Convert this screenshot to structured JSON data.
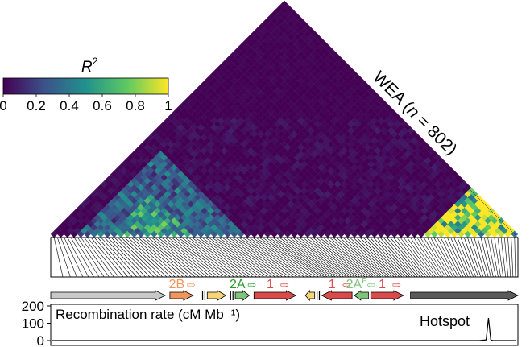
{
  "chart_data": [
    {
      "type": "heatmap",
      "title": "",
      "population_label": {
        "prefix": "WEA (",
        "italic": "n",
        "suffix": " = 802)"
      },
      "colorbar": {
        "label_base": "R",
        "label_sup": "2",
        "range": [
          0,
          1
        ],
        "ticks": [
          "0",
          "0.2",
          "0.4",
          "0.6",
          "0.8",
          "1"
        ],
        "colors": [
          "#440154",
          "#3b528b",
          "#21918c",
          "#5ec962",
          "#fde725"
        ]
      },
      "blocks": [
        {
          "name": "background",
          "start": 0.0,
          "end": 1.0,
          "level": 0.05
        },
        {
          "name": "block-left",
          "start": 0.05,
          "end": 0.42,
          "level": 0.35
        },
        {
          "name": "block-left-core",
          "start": 0.12,
          "end": 0.3,
          "level": 0.55
        },
        {
          "name": "block-right",
          "start": 0.8,
          "end": 1.0,
          "level": 0.9
        }
      ]
    },
    {
      "type": "line",
      "title": "",
      "ylabel": "Recombination rate (cM Mb⁻¹)",
      "yticks": [
        "200",
        "100",
        "0"
      ],
      "ylim": [
        0,
        220
      ],
      "annotation": "Hotspot",
      "x": [
        0.0,
        0.2,
        0.4,
        0.6,
        0.8,
        0.92,
        0.935,
        0.94,
        0.945,
        0.95,
        1.0
      ],
      "y": [
        0,
        0,
        0,
        0,
        0,
        0,
        4,
        130,
        4,
        0,
        0
      ]
    }
  ],
  "genes": [
    {
      "label": "",
      "start": 0.0,
      "end": 0.245,
      "dir": "right",
      "color": "#c8c8c8"
    },
    {
      "label": "2B",
      "start": 0.255,
      "end": 0.305,
      "dir": "right",
      "color": "#f0955c",
      "label_color": "#f0955c"
    },
    {
      "label": "",
      "start": 0.335,
      "end": 0.375,
      "dir": "right",
      "color": "#f7d47a"
    },
    {
      "label": "2A",
      "start": 0.395,
      "end": 0.425,
      "dir": "right",
      "color": "#7fc47a",
      "label_color": "#2a9a2a"
    },
    {
      "label": "1",
      "start": 0.435,
      "end": 0.525,
      "dir": "right",
      "color": "#d94a4a",
      "label_color": "#d94a4a"
    },
    {
      "label": "",
      "start": 0.545,
      "end": 0.565,
      "dir": "left",
      "color": "#f7d47a"
    },
    {
      "label": "1",
      "start": 0.58,
      "end": 0.645,
      "dir": "left",
      "color": "#d94a4a",
      "label_color": "#d94a4a"
    },
    {
      "label": "2A",
      "sup": "P",
      "start": 0.65,
      "end": 0.68,
      "dir": "left",
      "color": "#7fc47a",
      "label_color": "#7fc47a"
    },
    {
      "label": "1",
      "start": 0.685,
      "end": 0.755,
      "dir": "right",
      "color": "#d94a4a",
      "label_color": "#d94a4a"
    },
    {
      "label": "",
      "start": 0.77,
      "end": 1.0,
      "dir": "right",
      "color": "#5a5a5a"
    }
  ],
  "arrow_glyph": "⇨",
  "arrow_glyph_left": "⇦"
}
